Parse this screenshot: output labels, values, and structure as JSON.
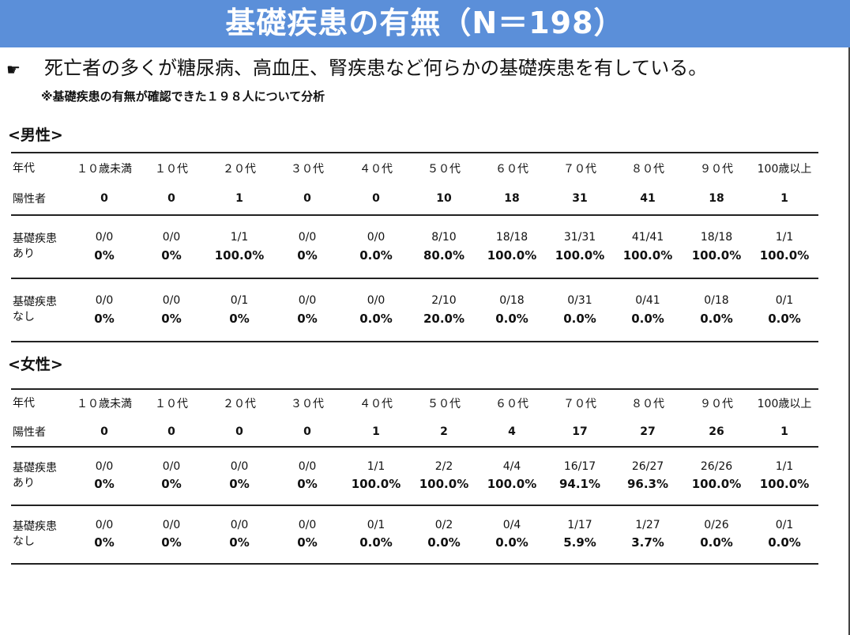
{
  "title": "基礎疾患の有無（N＝198）",
  "bullet_symbol": "☛",
  "lead": "死亡者の多くが糖尿病、高血圧、腎疾患など何らかの基礎疾患を有している。",
  "note": "※基礎疾患の有無が確認できた１９８人について分析",
  "male": {
    "heading": "<男性>",
    "age_label": "年代",
    "positive_label": "陽性者",
    "with_label_1": "基礎疾患",
    "with_label_2": "あり",
    "without_label_1": "基礎疾患",
    "without_label_2": "なし",
    "ages": [
      "１０歳未満",
      "１０代",
      "２０代",
      "３０代",
      "４０代",
      "５０代",
      "６０代",
      "７０代",
      "８０代",
      "９０代",
      "100歳以上"
    ],
    "positives": [
      "0",
      "0",
      "1",
      "0",
      "0",
      "10",
      "18",
      "31",
      "41",
      "18",
      "1"
    ],
    "with_frac": [
      "0/0",
      "0/0",
      "1/1",
      "0/0",
      "0/0",
      "8/10",
      "18/18",
      "31/31",
      "41/41",
      "18/18",
      "1/1"
    ],
    "with_pct": [
      "0%",
      "0%",
      "100.0%",
      "0%",
      "0.0%",
      "80.0%",
      "100.0%",
      "100.0%",
      "100.0%",
      "100.0%",
      "100.0%"
    ],
    "without_frac": [
      "0/0",
      "0/0",
      "0/1",
      "0/0",
      "0/0",
      "2/10",
      "0/18",
      "0/31",
      "0/41",
      "0/18",
      "0/1"
    ],
    "without_pct": [
      "0%",
      "0%",
      "0%",
      "0%",
      "0.0%",
      "20.0%",
      "0.0%",
      "0.0%",
      "0.0%",
      "0.0%",
      "0.0%"
    ]
  },
  "female": {
    "heading": "<女性>",
    "age_label": "年代",
    "positive_label": "陽性者",
    "with_label_1": "基礎疾患",
    "with_label_2": "あり",
    "without_label_1": "基礎疾患",
    "without_label_2": "なし",
    "ages": [
      "１０歳未満",
      "１０代",
      "２０代",
      "３０代",
      "４０代",
      "５０代",
      "６０代",
      "７０代",
      "８０代",
      "９０代",
      "100歳以上"
    ],
    "positives": [
      "0",
      "0",
      "0",
      "0",
      "1",
      "2",
      "4",
      "17",
      "27",
      "26",
      "1"
    ],
    "with_frac": [
      "0/0",
      "0/0",
      "0/0",
      "0/0",
      "1/1",
      "2/2",
      "4/4",
      "16/17",
      "26/27",
      "26/26",
      "1/1"
    ],
    "with_pct": [
      "0%",
      "0%",
      "0%",
      "0%",
      "100.0%",
      "100.0%",
      "100.0%",
      "94.1%",
      "96.3%",
      "100.0%",
      "100.0%"
    ],
    "without_frac": [
      "0/0",
      "0/0",
      "0/0",
      "0/0",
      "0/1",
      "0/2",
      "0/4",
      "1/17",
      "1/27",
      "0/26",
      "0/1"
    ],
    "without_pct": [
      "0%",
      "0%",
      "0%",
      "0%",
      "0.0%",
      "0.0%",
      "0.0%",
      "5.9%",
      "3.7%",
      "0.0%",
      "0.0%"
    ]
  }
}
